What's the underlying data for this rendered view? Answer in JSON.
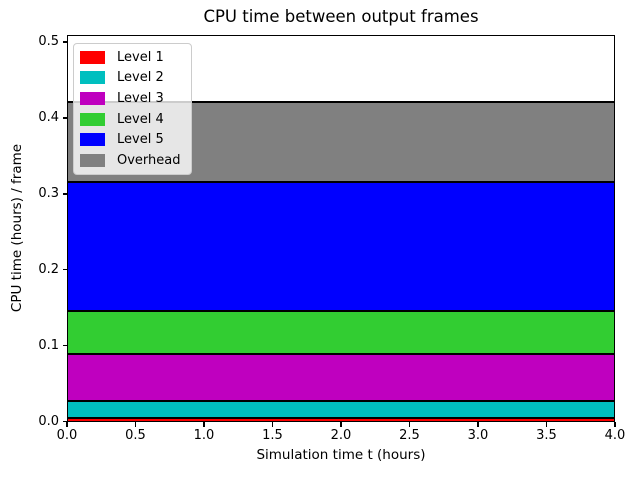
{
  "chart_data": {
    "type": "area",
    "stacked": true,
    "title": "CPU time between output frames",
    "xlabel": "Simulation time t (hours)",
    "ylabel": "CPU time (hours) / frame",
    "xlim": [
      0.0,
      4.0
    ],
    "ylim": [
      0.0,
      0.509
    ],
    "x_ticks": [
      {
        "value": 0.0,
        "label": "0.0"
      },
      {
        "value": 0.5,
        "label": "0.5"
      },
      {
        "value": 1.0,
        "label": "1.0"
      },
      {
        "value": 1.5,
        "label": "1.5"
      },
      {
        "value": 2.0,
        "label": "2.0"
      },
      {
        "value": 2.5,
        "label": "2.5"
      },
      {
        "value": 3.0,
        "label": "3.0"
      },
      {
        "value": 3.5,
        "label": "3.5"
      },
      {
        "value": 4.0,
        "label": "4.0"
      }
    ],
    "y_ticks": [
      {
        "value": 0.0,
        "label": "0.0"
      },
      {
        "value": 0.1,
        "label": "0.1"
      },
      {
        "value": 0.2,
        "label": "0.2"
      },
      {
        "value": 0.3,
        "label": "0.3"
      },
      {
        "value": 0.4,
        "label": "0.4"
      },
      {
        "value": 0.5,
        "label": "0.5"
      }
    ],
    "grid": false,
    "legend_position": "upper left",
    "values_constant_over_x": true,
    "x_span": [
      0.0,
      4.0
    ],
    "series": [
      {
        "name": "Level 1",
        "color": "#ff0000",
        "thickness": 0.005,
        "stack_top": 0.005
      },
      {
        "name": "Level 2",
        "color": "#00bfbf",
        "thickness": 0.023,
        "stack_top": 0.028
      },
      {
        "name": "Level 3",
        "color": "#bf00bf",
        "thickness": 0.062,
        "stack_top": 0.09
      },
      {
        "name": "Level 4",
        "color": "#32cd32",
        "thickness": 0.056,
        "stack_top": 0.146
      },
      {
        "name": "Level 5",
        "color": "#0000ff",
        "thickness": 0.17,
        "stack_top": 0.316
      },
      {
        "name": "Overhead",
        "color": "#808080",
        "thickness": 0.106,
        "stack_top": 0.422
      }
    ],
    "style": {
      "band_edge_color": "#000000",
      "figure_background": "#ffffff",
      "legend_border_color": "#cccccc",
      "axes_color": "#000000"
    }
  }
}
